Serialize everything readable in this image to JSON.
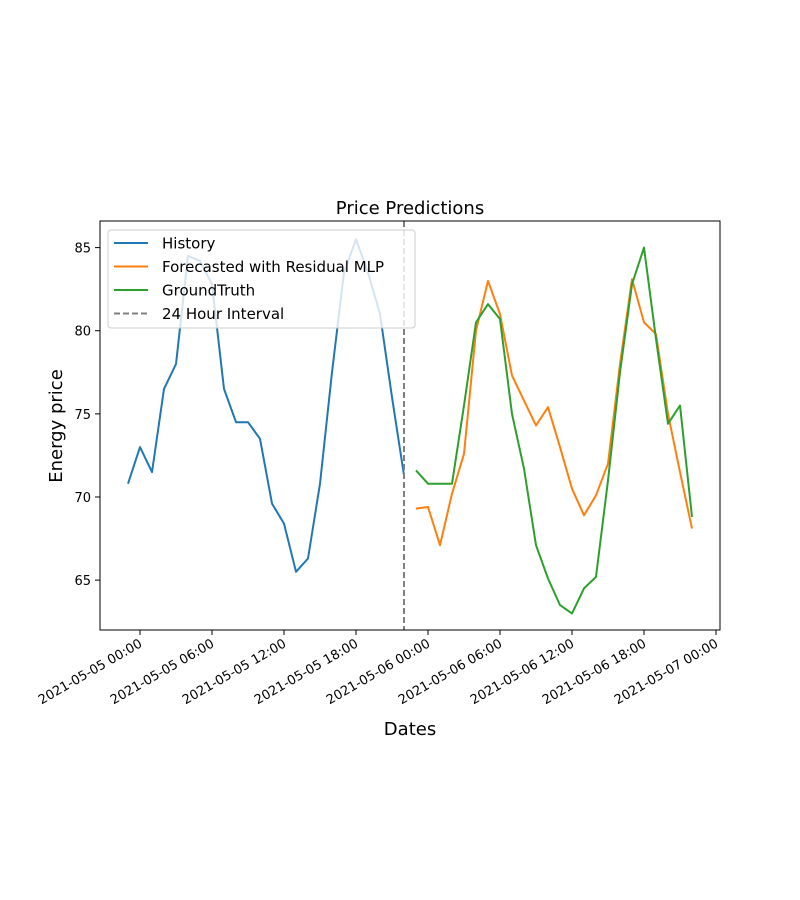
{
  "chart_data": {
    "type": "line",
    "title": "Price Predictions",
    "xlabel": "Dates",
    "ylabel": "Energy price",
    "grid": false,
    "legend_position": "top-left",
    "x_range": [
      "2021-05-04 20:40",
      "2021-05-07 00:20"
    ],
    "ylim": [
      62,
      86.6
    ],
    "y_ticks": [
      65,
      70,
      75,
      80,
      85
    ],
    "x_ticks": [
      "2021-05-05 00:00",
      "2021-05-05 06:00",
      "2021-05-05 12:00",
      "2021-05-05 18:00",
      "2021-05-06 00:00",
      "2021-05-06 06:00",
      "2021-05-06 12:00",
      "2021-05-06 18:00",
      "2021-05-07 00:00"
    ],
    "x_tick_labels": [
      "2021-05-05 00:00",
      "2021-05-05 06:00",
      "2021-05-05 12:00",
      "2021-05-05 18:00",
      "2021-05-06 00:00",
      "2021-05-06 06:00",
      "2021-05-06 12:00",
      "2021-05-06 18:00",
      "2021-05-07 00:00"
    ],
    "vline": {
      "x": "2021-05-05 22:00",
      "label": "24 Hour Interval",
      "color": "#7f7f7f"
    },
    "series": [
      {
        "name": "History",
        "color": "#1f77b4",
        "x": [
          "2021-05-04 23:00",
          "2021-05-05 00:00",
          "2021-05-05 01:00",
          "2021-05-05 02:00",
          "2021-05-05 03:00",
          "2021-05-05 04:00",
          "2021-05-05 05:00",
          "2021-05-05 06:00",
          "2021-05-05 07:00",
          "2021-05-05 08:00",
          "2021-05-05 09:00",
          "2021-05-05 10:00",
          "2021-05-05 11:00",
          "2021-05-05 12:00",
          "2021-05-05 13:00",
          "2021-05-05 14:00",
          "2021-05-05 15:00",
          "2021-05-05 16:00",
          "2021-05-05 17:00",
          "2021-05-05 18:00",
          "2021-05-05 19:00",
          "2021-05-05 20:00",
          "2021-05-05 21:00",
          "2021-05-05 22:00"
        ],
        "values": [
          70.8,
          73.0,
          71.5,
          76.5,
          78.0,
          84.5,
          84.2,
          82.8,
          76.5,
          74.5,
          74.5,
          73.5,
          69.6,
          68.4,
          65.5,
          66.3,
          70.8,
          77.5,
          83.5,
          85.5,
          83.5,
          81.0,
          76.0,
          71.3
        ]
      },
      {
        "name": "Forecasted with Residual MLP",
        "color": "#ff7f0e",
        "x": [
          "2021-05-05 23:00",
          "2021-05-06 00:00",
          "2021-05-06 01:00",
          "2021-05-06 02:00",
          "2021-05-06 03:00",
          "2021-05-06 04:00",
          "2021-05-06 05:00",
          "2021-05-06 06:00",
          "2021-05-06 07:00",
          "2021-05-06 08:00",
          "2021-05-06 09:00",
          "2021-05-06 10:00",
          "2021-05-06 11:00",
          "2021-05-06 12:00",
          "2021-05-06 13:00",
          "2021-05-06 14:00",
          "2021-05-06 15:00",
          "2021-05-06 16:00",
          "2021-05-06 17:00",
          "2021-05-06 18:00",
          "2021-05-06 19:00",
          "2021-05-06 20:00",
          "2021-05-06 21:00",
          "2021-05-06 22:00"
        ],
        "values": [
          69.3,
          69.4,
          67.1,
          70.2,
          72.6,
          80.0,
          83.0,
          81.0,
          77.3,
          75.8,
          74.3,
          75.4,
          73.0,
          70.5,
          68.9,
          70.1,
          72.0,
          78.0,
          83.1,
          80.5,
          79.8,
          75.0,
          71.5,
          68.1
        ]
      },
      {
        "name": "GroundTruth",
        "color": "#2ca02c",
        "x": [
          "2021-05-05 23:00",
          "2021-05-06 00:00",
          "2021-05-06 01:00",
          "2021-05-06 02:00",
          "2021-05-06 03:00",
          "2021-05-06 04:00",
          "2021-05-06 05:00",
          "2021-05-06 06:00",
          "2021-05-06 07:00",
          "2021-05-06 08:00",
          "2021-05-06 09:00",
          "2021-05-06 10:00",
          "2021-05-06 11:00",
          "2021-05-06 12:00",
          "2021-05-06 13:00",
          "2021-05-06 14:00",
          "2021-05-06 15:00",
          "2021-05-06 16:00",
          "2021-05-06 17:00",
          "2021-05-06 18:00",
          "2021-05-06 19:00",
          "2021-05-06 20:00",
          "2021-05-06 21:00",
          "2021-05-06 22:00"
        ],
        "values": [
          71.6,
          70.8,
          70.8,
          70.8,
          75.5,
          80.5,
          81.6,
          80.7,
          75.0,
          71.7,
          67.1,
          65.1,
          63.5,
          63.0,
          64.5,
          65.2,
          71.0,
          77.5,
          82.8,
          85.0,
          79.5,
          74.4,
          75.5,
          68.8
        ]
      }
    ]
  }
}
